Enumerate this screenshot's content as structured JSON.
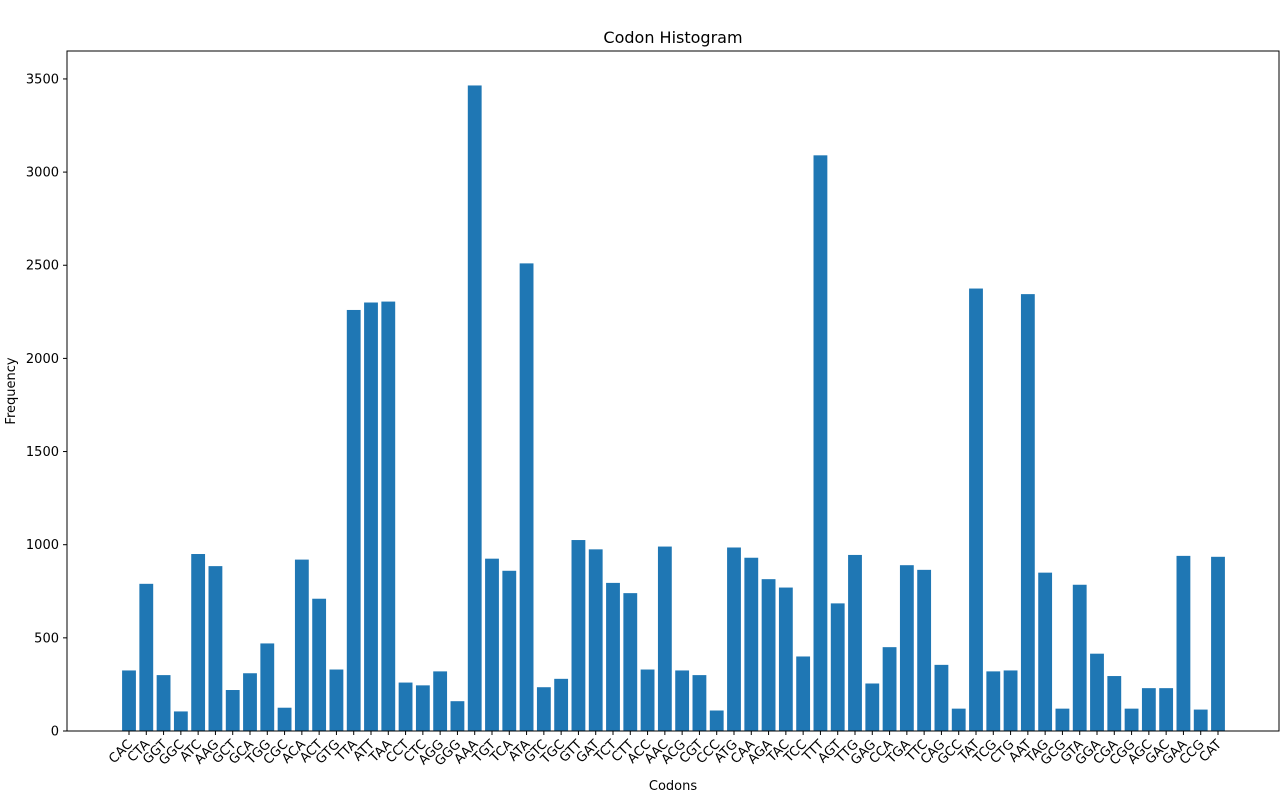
{
  "chart_data": {
    "type": "bar",
    "title": "Codon Histogram",
    "xlabel": "Codons",
    "ylabel": "Frequency",
    "ylim": [
      0,
      3650
    ],
    "yticks": [
      0,
      500,
      1000,
      1500,
      2000,
      2500,
      3000,
      3500
    ],
    "grid": false,
    "color": "#1f77b4",
    "categories": [
      "CAC",
      "CTA",
      "GGT",
      "GGC",
      "ATC",
      "AAG",
      "GCT",
      "GCA",
      "TGG",
      "CGC",
      "ACA",
      "ACT",
      "GTG",
      "TTA",
      "ATT",
      "TAA",
      "CCT",
      "CTC",
      "AGG",
      "GGG",
      "AAA",
      "TGT",
      "TCA",
      "ATA",
      "GTC",
      "TGC",
      "GTT",
      "GAT",
      "TCT",
      "CTT",
      "ACC",
      "AAC",
      "ACG",
      "CGT",
      "CCC",
      "ATG",
      "CAA",
      "AGA",
      "TAC",
      "TCC",
      "TTT",
      "AGT",
      "TTG",
      "GAG",
      "CCA",
      "TGA",
      "TTC",
      "CAG",
      "GCC",
      "TAT",
      "TCG",
      "CTG",
      "AAT",
      "TAG",
      "GCG",
      "GTA",
      "GGA",
      "CGA",
      "CGG",
      "AGC",
      "GAC",
      "GAA",
      "CCG",
      "CAT"
    ],
    "values": [
      325,
      790,
      300,
      105,
      950,
      885,
      220,
      310,
      470,
      125,
      920,
      710,
      330,
      2260,
      2300,
      2305,
      260,
      245,
      320,
      160,
      3465,
      925,
      860,
      2510,
      235,
      280,
      1025,
      975,
      795,
      740,
      330,
      990,
      325,
      300,
      110,
      985,
      930,
      815,
      770,
      400,
      3090,
      685,
      945,
      255,
      450,
      890,
      865,
      355,
      120,
      2375,
      320,
      325,
      2345,
      850,
      120,
      785,
      415,
      295,
      120,
      230,
      230,
      940,
      115,
      935
    ]
  }
}
